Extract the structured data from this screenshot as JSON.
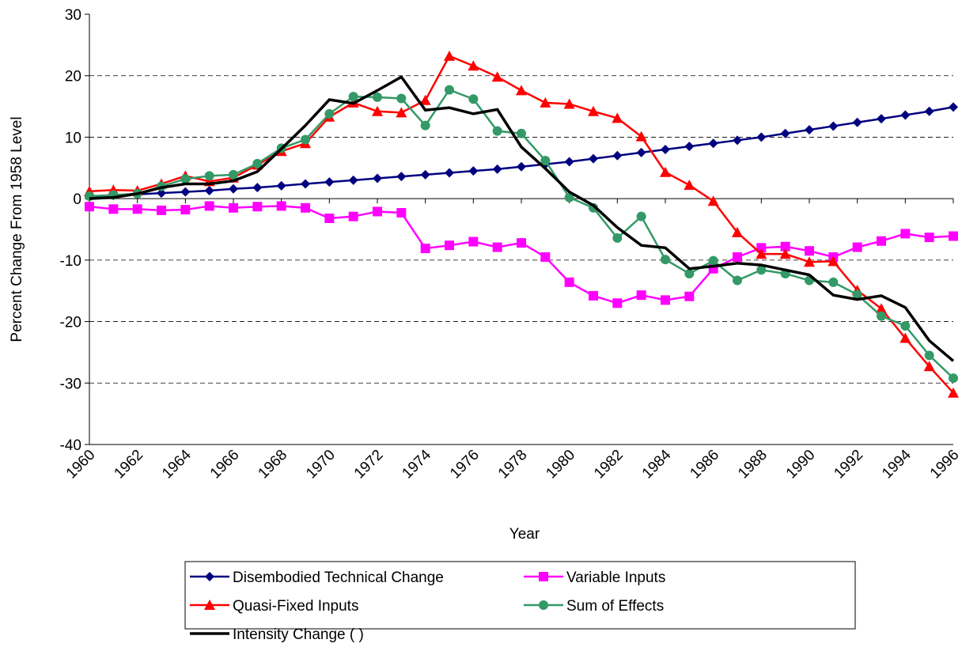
{
  "chart_data": {
    "type": "line",
    "x_label": "Year",
    "y_label": "Percent Change From 1958 Level",
    "x": [
      1960,
      1961,
      1962,
      1963,
      1964,
      1965,
      1966,
      1967,
      1968,
      1969,
      1970,
      1971,
      1972,
      1973,
      1974,
      1975,
      1976,
      1977,
      1978,
      1979,
      1980,
      1981,
      1982,
      1983,
      1984,
      1985,
      1986,
      1987,
      1988,
      1989,
      1990,
      1991,
      1992,
      1993,
      1994,
      1995,
      1996
    ],
    "xlim": [
      1960,
      1996
    ],
    "xticks": [
      1960,
      1962,
      1964,
      1966,
      1968,
      1970,
      1972,
      1974,
      1976,
      1978,
      1980,
      1982,
      1984,
      1986,
      1988,
      1990,
      1992,
      1994,
      1996
    ],
    "ylim": [
      -40,
      30
    ],
    "yticks": [
      -40,
      -30,
      -20,
      -10,
      0,
      10,
      20,
      30
    ],
    "grid": true,
    "series": [
      {
        "name": "Disembodied Technical Change",
        "color": "#000080",
        "marker": "diamond",
        "values": [
          0.3,
          0.5,
          0.7,
          0.9,
          1.1,
          1.3,
          1.6,
          1.8,
          2.1,
          2.4,
          2.7,
          3.0,
          3.3,
          3.6,
          3.9,
          4.2,
          4.5,
          4.8,
          5.2,
          5.6,
          6.0,
          6.5,
          7.0,
          7.5,
          8.0,
          8.5,
          9.0,
          9.5,
          10.0,
          10.6,
          11.2,
          11.8,
          12.4,
          13.0,
          13.6,
          14.2,
          14.9
        ]
      },
      {
        "name": "Variable Inputs",
        "color": "#FF00FF",
        "marker": "square",
        "values": [
          -1.3,
          -1.7,
          -1.7,
          -1.9,
          -1.8,
          -1.2,
          -1.5,
          -1.3,
          -1.2,
          -1.5,
          -3.2,
          -2.9,
          -2.1,
          -2.3,
          -8.1,
          -7.6,
          -7.0,
          -7.9,
          -7.2,
          -9.5,
          -13.6,
          -15.8,
          -17.0,
          -15.7,
          -16.5,
          -15.9,
          -11.4,
          -9.5,
          -8.0,
          -7.8,
          -8.5,
          -9.5,
          -7.9,
          -6.9,
          -5.7,
          -6.3,
          -6.1
        ]
      },
      {
        "name": "Quasi-Fixed Inputs",
        "color": "#FF0000",
        "marker": "triangle",
        "values": [
          1.2,
          1.4,
          1.3,
          2.4,
          3.7,
          2.8,
          3.4,
          5.5,
          7.7,
          9.0,
          13.3,
          15.6,
          14.2,
          14.0,
          16.0,
          23.2,
          21.6,
          19.8,
          17.6,
          15.6,
          15.4,
          14.2,
          13.1,
          10.1,
          4.3,
          2.2,
          -0.4,
          -5.5,
          -9.0,
          -9.0,
          -10.3,
          -10.2,
          -14.9,
          -17.9,
          -22.7,
          -27.3,
          -31.6
        ]
      },
      {
        "name": "Sum of Effects",
        "color": "#339966",
        "marker": "circle",
        "values": [
          0.4,
          0.6,
          0.8,
          2.0,
          3.2,
          3.7,
          3.9,
          5.7,
          8.2,
          9.6,
          13.8,
          16.6,
          16.5,
          16.3,
          11.9,
          17.7,
          16.2,
          11.0,
          10.6,
          6.2,
          0.2,
          -1.5,
          -6.4,
          -2.9,
          -9.9,
          -12.2,
          -10.1,
          -13.3,
          -11.6,
          -12.2,
          -13.3,
          -13.6,
          -15.6,
          -19.1,
          -20.7,
          -25.5,
          -29.2
        ]
      },
      {
        "name": "Intensity Change (   )",
        "color": "#000000",
        "marker": "none",
        "values": [
          0,
          0.2,
          0.8,
          1.8,
          2.4,
          2.4,
          2.9,
          4.4,
          8.1,
          11.9,
          16.1,
          15.5,
          17.6,
          19.8,
          14.4,
          14.8,
          13.8,
          14.5,
          8.4,
          4.9,
          1.1,
          -1.1,
          -4.7,
          -7.6,
          -8.0,
          -11.4,
          -11.0,
          -10.5,
          -10.8,
          -11.6,
          -12.4,
          -15.7,
          -16.4,
          -15.8,
          -17.7,
          -23.1,
          -26.4
        ]
      }
    ]
  }
}
